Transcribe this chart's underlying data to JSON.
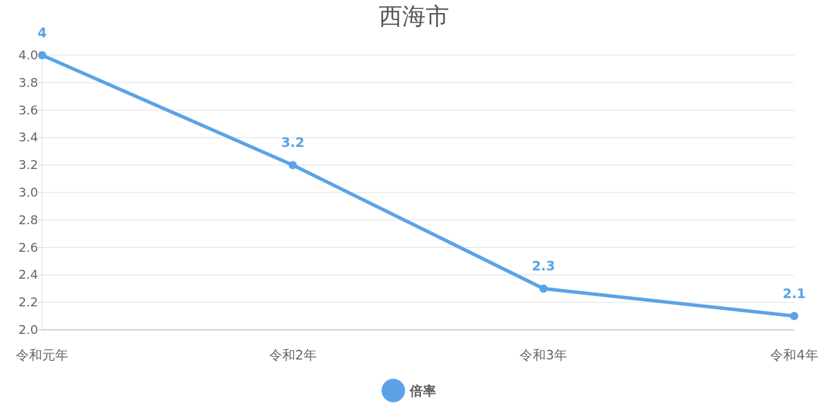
{
  "chart_data": {
    "type": "line",
    "title": "西海市",
    "categories": [
      "令和元年",
      "令和2年",
      "令和3年",
      "令和4年"
    ],
    "series": [
      {
        "name": "倍率",
        "color": "#5ba3e6",
        "values": [
          4,
          3.2,
          2.3,
          2.1
        ]
      }
    ],
    "ylim": [
      2.0,
      4.0
    ],
    "yticks": [
      {
        "value": 2.0,
        "label": "2.0"
      },
      {
        "value": 2.2,
        "label": "2.2"
      },
      {
        "value": 2.4,
        "label": "2.4"
      },
      {
        "value": 2.6,
        "label": "2.6"
      },
      {
        "value": 2.8,
        "label": "2.8"
      },
      {
        "value": 3.0,
        "label": "3.0"
      },
      {
        "value": 3.2,
        "label": "3.2"
      },
      {
        "value": 3.4,
        "label": "3.4"
      },
      {
        "value": 3.6,
        "label": "3.6"
      },
      {
        "value": 3.8,
        "label": "3.8"
      },
      {
        "value": 4.0,
        "label": "4.0"
      }
    ],
    "grid": "y",
    "legend": "bottom",
    "marker": "circle",
    "line_style": "solid",
    "data_labels": true
  }
}
